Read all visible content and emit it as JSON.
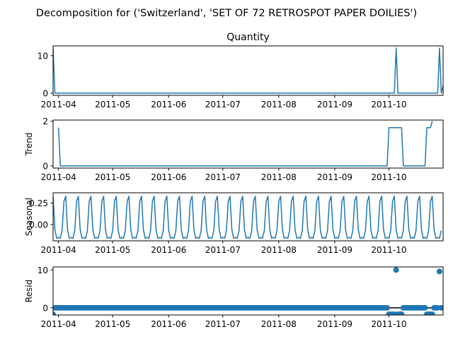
{
  "figure": {
    "suptitle": "Decomposition for ('Switzerland', 'SET OF 72 RETROSPOT PAPER  DOILIES')"
  },
  "colors": {
    "line": "#1f77b4",
    "axis": "#000000",
    "background": "#ffffff"
  },
  "x_axis": {
    "start_date": "2011-03-29",
    "end_date": "2011-10-30",
    "tick_labels": [
      "2011-04",
      "2011-05",
      "2011-06",
      "2011-07",
      "2011-08",
      "2011-09",
      "2011-10"
    ],
    "tick_dates": [
      "2011-04-01",
      "2011-05-01",
      "2011-06-01",
      "2011-07-01",
      "2011-08-01",
      "2011-09-01",
      "2011-10-01"
    ]
  },
  "chart_data": [
    {
      "type": "line",
      "title": "Quantity",
      "ylabel": "",
      "ylim": [
        -0.6,
        12.6
      ],
      "yticks": [
        0,
        10
      ],
      "points": [
        [
          "2011-03-29",
          12
        ],
        [
          "2011-03-30",
          0
        ],
        [
          "2011-10-04",
          0
        ],
        [
          "2011-10-05",
          12
        ],
        [
          "2011-10-06",
          0
        ],
        [
          "2011-10-28",
          0
        ],
        [
          "2011-10-29",
          12
        ],
        [
          "2011-10-30",
          0
        ],
        [
          "2011-10-31",
          2
        ]
      ]
    },
    {
      "type": "line",
      "title": "",
      "ylabel": "Trend",
      "ylim": [
        -0.1,
        2.05
      ],
      "yticks": [
        0,
        2
      ],
      "points": [
        [
          "2011-04-01",
          1.71
        ],
        [
          "2011-04-02",
          0
        ],
        [
          "2011-09-30",
          0
        ],
        [
          "2011-10-01",
          1.71
        ],
        [
          "2011-10-08",
          1.71
        ],
        [
          "2011-10-09",
          0
        ],
        [
          "2011-10-21",
          0
        ],
        [
          "2011-10-22",
          1.71
        ],
        [
          "2011-10-24",
          1.71
        ],
        [
          "2011-10-25",
          2.0
        ]
      ]
    },
    {
      "type": "line",
      "title": "",
      "ylabel": "Seasonal",
      "ylim": [
        -0.19,
        0.37
      ],
      "yticks": [
        0.0,
        0.25
      ],
      "ytick_labels": [
        "0.00",
        "0.25"
      ],
      "period_days": 7,
      "pattern": [
        0.33,
        -0.06,
        -0.16,
        -0.15,
        -0.16,
        -0.07,
        0.27
      ]
    },
    {
      "type": "scatter",
      "title": "",
      "ylabel": "Resid",
      "ylim": [
        -1.9,
        10.8
      ],
      "yticks": [
        0,
        10
      ],
      "baseline": 0,
      "outliers": [
        [
          "2011-03-29",
          -1.71
        ],
        [
          "2011-10-01",
          -1.71
        ],
        [
          "2011-10-02",
          -1.71
        ],
        [
          "2011-10-03",
          -1.71
        ],
        [
          "2011-10-04",
          -1.71
        ],
        [
          "2011-10-05",
          10.0
        ],
        [
          "2011-10-06",
          -1.71
        ],
        [
          "2011-10-07",
          -1.71
        ],
        [
          "2011-10-08",
          -1.71
        ],
        [
          "2011-10-22",
          -1.71
        ],
        [
          "2011-10-23",
          -1.71
        ],
        [
          "2011-10-24",
          -1.71
        ],
        [
          "2011-10-25",
          -1.71
        ],
        [
          "2011-10-29",
          9.6
        ]
      ]
    }
  ]
}
